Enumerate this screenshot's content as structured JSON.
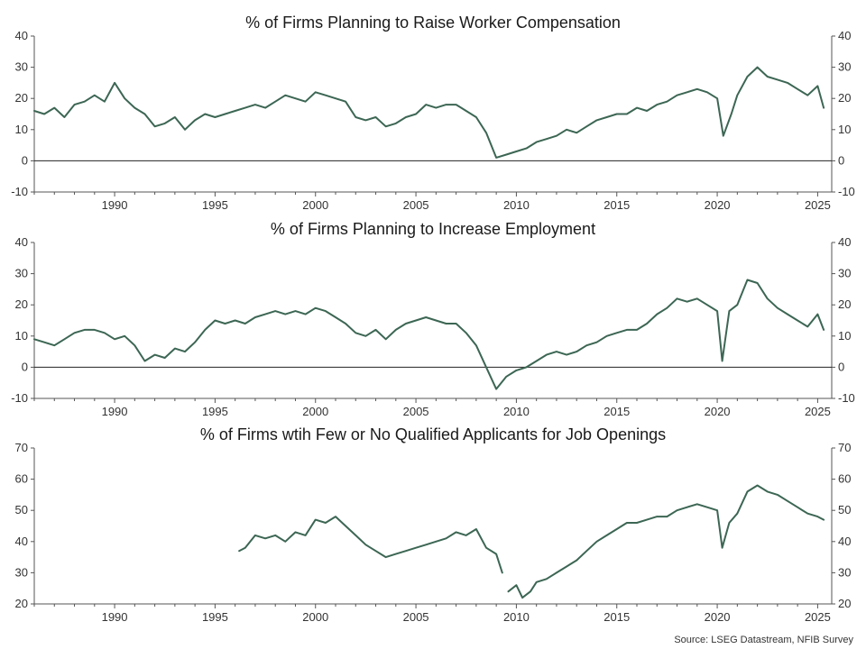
{
  "source": "Source: LSEG Datastream, NFIB Survey",
  "colors": {
    "line": "#3c6654",
    "axis": "#555555",
    "zero": "#222222"
  },
  "chart_data": [
    {
      "type": "line",
      "title": "% of Firms Planning to Raise Worker Compensation",
      "xlim": [
        1986,
        2025.7
      ],
      "ylim": [
        -10,
        40
      ],
      "yticks": [
        -10,
        0,
        10,
        20,
        30,
        40
      ],
      "xticks": [
        1990,
        1995,
        2000,
        2005,
        2010,
        2015,
        2020,
        2025
      ],
      "zero_line": true,
      "series": [
        {
          "x": [
            1986.0,
            1986.5,
            1987.0,
            1987.5,
            1988.0,
            1988.5,
            1989.0,
            1989.5,
            1990.0,
            1990.5,
            1991.0,
            1991.5,
            1992.0,
            1992.5,
            1993.0,
            1993.5,
            1994.0,
            1994.5,
            1995.0,
            1995.5,
            1996.0,
            1996.5,
            1997.0,
            1997.5,
            1998.0,
            1998.5,
            1999.0,
            1999.5,
            2000.0,
            2000.5,
            2001.0,
            2001.5,
            2002.0,
            2002.5,
            2003.0,
            2003.5,
            2004.0,
            2004.5,
            2005.0,
            2005.5,
            2006.0,
            2006.5,
            2007.0,
            2007.5,
            2008.0,
            2008.5,
            2009.0,
            2009.5,
            2010.0,
            2010.5,
            2011.0,
            2011.5,
            2012.0,
            2012.5,
            2013.0,
            2013.5,
            2014.0,
            2014.5,
            2015.0,
            2015.5,
            2016.0,
            2016.5,
            2017.0,
            2017.5,
            2018.0,
            2018.5,
            2019.0,
            2019.5,
            2020.0,
            2020.3,
            2020.7,
            2021.0,
            2021.5,
            2022.0,
            2022.5,
            2023.0,
            2023.5,
            2024.0,
            2024.5,
            2025.0,
            2025.3
          ],
          "y": [
            16,
            15,
            17,
            14,
            18,
            19,
            21,
            19,
            25,
            20,
            17,
            15,
            11,
            12,
            14,
            10,
            13,
            15,
            14,
            15,
            16,
            17,
            18,
            17,
            19,
            21,
            20,
            19,
            22,
            21,
            20,
            19,
            14,
            13,
            14,
            11,
            12,
            14,
            15,
            18,
            17,
            18,
            18,
            16,
            14,
            9,
            1,
            2,
            3,
            4,
            6,
            7,
            8,
            10,
            9,
            11,
            13,
            14,
            15,
            15,
            17,
            16,
            18,
            19,
            21,
            22,
            23,
            22,
            20,
            8,
            15,
            21,
            27,
            30,
            27,
            26,
            25,
            23,
            21,
            24,
            17
          ]
        }
      ]
    },
    {
      "type": "line",
      "title": "% of Firms Planning to Increase Employment",
      "xlim": [
        1986,
        2025.7
      ],
      "ylim": [
        -10,
        40
      ],
      "yticks": [
        -10,
        0,
        10,
        20,
        30,
        40
      ],
      "xticks": [
        1990,
        1995,
        2000,
        2005,
        2010,
        2015,
        2020,
        2025
      ],
      "zero_line": true,
      "series": [
        {
          "x": [
            1986.0,
            1986.5,
            1987.0,
            1987.5,
            1988.0,
            1988.5,
            1989.0,
            1989.5,
            1990.0,
            1990.5,
            1991.0,
            1991.5,
            1992.0,
            1992.5,
            1993.0,
            1993.5,
            1994.0,
            1994.5,
            1995.0,
            1995.5,
            1996.0,
            1996.5,
            1997.0,
            1997.5,
            1998.0,
            1998.5,
            1999.0,
            1999.5,
            2000.0,
            2000.5,
            2001.0,
            2001.5,
            2002.0,
            2002.5,
            2003.0,
            2003.5,
            2004.0,
            2004.5,
            2005.0,
            2005.5,
            2006.0,
            2006.5,
            2007.0,
            2007.5,
            2008.0,
            2008.5,
            2009.0,
            2009.5,
            2010.0,
            2010.5,
            2011.0,
            2011.5,
            2012.0,
            2012.5,
            2013.0,
            2013.5,
            2014.0,
            2014.5,
            2015.0,
            2015.5,
            2016.0,
            2016.5,
            2017.0,
            2017.5,
            2018.0,
            2018.5,
            2019.0,
            2019.5,
            2020.0,
            2020.25,
            2020.6,
            2021.0,
            2021.5,
            2022.0,
            2022.5,
            2023.0,
            2023.5,
            2024.0,
            2024.5,
            2025.0,
            2025.3
          ],
          "y": [
            9,
            8,
            7,
            9,
            11,
            12,
            12,
            11,
            9,
            10,
            7,
            2,
            4,
            3,
            6,
            5,
            8,
            12,
            15,
            14,
            15,
            14,
            16,
            17,
            18,
            17,
            18,
            17,
            19,
            18,
            16,
            14,
            11,
            10,
            12,
            9,
            12,
            14,
            15,
            16,
            15,
            14,
            14,
            11,
            7,
            0,
            -7,
            -3,
            -1,
            0,
            2,
            4,
            5,
            4,
            5,
            7,
            8,
            10,
            11,
            12,
            12,
            14,
            17,
            19,
            22,
            21,
            22,
            20,
            18,
            2,
            18,
            20,
            28,
            27,
            22,
            19,
            17,
            15,
            13,
            17,
            12
          ]
        }
      ]
    },
    {
      "type": "line",
      "title": "% of Firms wtih Few or No Qualified Applicants for Job Openings",
      "xlim": [
        1986,
        2025.7
      ],
      "ylim": [
        20,
        70
      ],
      "yticks": [
        20,
        30,
        40,
        50,
        60,
        70
      ],
      "xticks": [
        1990,
        1995,
        2000,
        2005,
        2010,
        2015,
        2020,
        2025
      ],
      "zero_line": false,
      "series": [
        {
          "x": [
            1996.2,
            1996.5,
            1997.0,
            1997.5,
            1998.0,
            1998.5,
            1999.0,
            1999.5,
            2000.0,
            2000.5,
            2001.0,
            2001.5,
            2002.0,
            2002.5,
            2003.0,
            2003.5,
            2004.0,
            2004.5,
            2005.0,
            2005.5,
            2006.0,
            2006.5,
            2007.0,
            2007.5,
            2008.0,
            2008.5,
            2009.0,
            2009.3
          ],
          "y": [
            37,
            38,
            42,
            41,
            42,
            40,
            43,
            42,
            47,
            46,
            48,
            45,
            42,
            39,
            37,
            35,
            36,
            37,
            38,
            39,
            40,
            41,
            43,
            42,
            44,
            38,
            36,
            30
          ]
        },
        {
          "x": [
            2009.6,
            2010.0,
            2010.3,
            2010.7,
            2011.0,
            2011.5,
            2012.0,
            2012.5,
            2013.0,
            2013.5,
            2014.0,
            2014.5,
            2015.0,
            2015.5,
            2016.0,
            2016.5,
            2017.0,
            2017.5,
            2018.0,
            2018.5,
            2019.0,
            2019.5,
            2020.0,
            2020.25,
            2020.6,
            2021.0,
            2021.5,
            2022.0,
            2022.5,
            2023.0,
            2023.5,
            2024.0,
            2024.5,
            2025.0,
            2025.3
          ],
          "y": [
            24,
            26,
            22,
            24,
            27,
            28,
            30,
            32,
            34,
            37,
            40,
            42,
            44,
            46,
            46,
            47,
            48,
            48,
            50,
            51,
            52,
            51,
            50,
            38,
            46,
            49,
            56,
            58,
            56,
            55,
            53,
            51,
            49,
            48,
            47
          ]
        }
      ]
    }
  ]
}
